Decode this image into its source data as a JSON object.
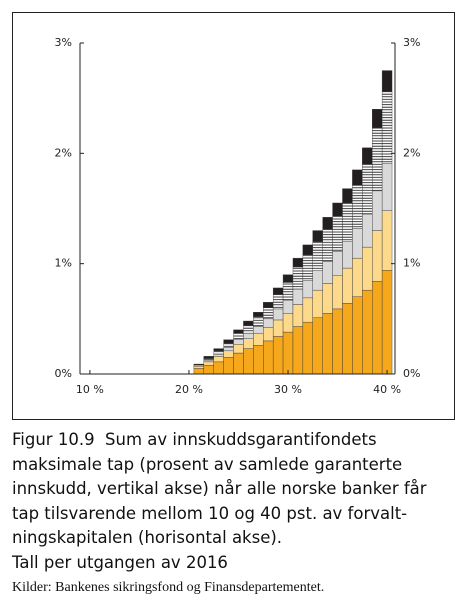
{
  "chart_data": {
    "type": "stacked-bar",
    "x": [
      21,
      22,
      23,
      24,
      25,
      26,
      27,
      28,
      29,
      30,
      31,
      32,
      33,
      34,
      35,
      36,
      37,
      38,
      39,
      40
    ],
    "xlim": [
      9,
      40.8
    ],
    "xticks": [
      {
        "value": 10,
        "label": "10 %"
      },
      {
        "value": 20,
        "label": "20 %"
      },
      {
        "value": 30,
        "label": "30 %"
      },
      {
        "value": 40,
        "label": "40 %"
      }
    ],
    "ylim": [
      0,
      3
    ],
    "yticks": [
      {
        "value": 0,
        "label": "0%"
      },
      {
        "value": 1,
        "label": "1%"
      },
      {
        "value": 2,
        "label": "2%"
      },
      {
        "value": 3,
        "label": "3%"
      }
    ],
    "series": [
      {
        "color": "#f5a81c",
        "values": [
          0.05,
          0.08,
          0.11,
          0.15,
          0.19,
          0.23,
          0.26,
          0.3,
          0.34,
          0.38,
          0.43,
          0.47,
          0.51,
          0.55,
          0.59,
          0.64,
          0.7,
          0.76,
          0.84,
          0.94
        ]
      },
      {
        "color": "#fdd98c",
        "values": [
          0.02,
          0.03,
          0.05,
          0.06,
          0.08,
          0.09,
          0.11,
          0.12,
          0.15,
          0.17,
          0.2,
          0.22,
          0.25,
          0.27,
          0.3,
          0.32,
          0.35,
          0.39,
          0.46,
          0.54
        ]
      },
      {
        "color": "#d9d9d9",
        "values": [
          0.0,
          0.01,
          0.02,
          0.03,
          0.04,
          0.05,
          0.06,
          0.08,
          0.1,
          0.12,
          0.14,
          0.16,
          0.18,
          0.2,
          0.22,
          0.24,
          0.27,
          0.3,
          0.36,
          0.43
        ]
      },
      {
        "color": "#ffffff",
        "pattern": "hlines",
        "values": [
          0.01,
          0.02,
          0.03,
          0.04,
          0.06,
          0.07,
          0.09,
          0.1,
          0.13,
          0.16,
          0.2,
          0.23,
          0.26,
          0.29,
          0.32,
          0.35,
          0.39,
          0.45,
          0.57,
          0.65
        ]
      },
      {
        "color": "#231f20",
        "values": [
          0.01,
          0.02,
          0.02,
          0.03,
          0.03,
          0.04,
          0.04,
          0.05,
          0.06,
          0.07,
          0.08,
          0.09,
          0.1,
          0.11,
          0.12,
          0.13,
          0.14,
          0.15,
          0.17,
          0.19
        ]
      }
    ],
    "caption": [
      "Figur 10.9  Sum av innskuddsgarantifondets",
      "maksimale tap (prosent av samlede garanterte",
      "innskudd, vertikal akse) når alle norske banker får",
      "tap tilsvarende mellom 10 og 40 pst. av forvalt-",
      "ningskapitalen (horisontal akse).",
      "Tall per utgangen av 2016"
    ],
    "source": "Kilder: Bankenes sikringsfond og Finansdepartementet."
  }
}
